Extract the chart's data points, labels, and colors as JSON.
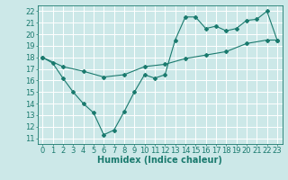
{
  "line1_x": [
    0,
    1,
    2,
    3,
    4,
    5,
    6,
    7,
    8,
    9,
    10,
    11,
    12,
    13,
    14,
    15,
    16,
    17,
    18,
    19,
    20,
    21,
    22,
    23
  ],
  "line1_y": [
    18.0,
    17.5,
    16.2,
    15.0,
    14.0,
    13.2,
    11.3,
    11.7,
    13.3,
    15.0,
    16.5,
    16.2,
    16.5,
    19.5,
    21.5,
    21.5,
    20.5,
    20.7,
    20.3,
    20.5,
    21.2,
    21.3,
    22.0,
    19.5
  ],
  "line2_x": [
    0,
    2,
    4,
    6,
    8,
    10,
    12,
    14,
    16,
    18,
    20,
    22,
    23
  ],
  "line2_y": [
    18.0,
    17.2,
    16.8,
    16.3,
    16.5,
    17.2,
    17.4,
    17.9,
    18.2,
    18.5,
    19.2,
    19.5,
    19.5
  ],
  "line_color": "#1a7a6e",
  "bg_color": "#cce8e8",
  "grid_color": "#ffffff",
  "xlabel": "Humidex (Indice chaleur)",
  "ylim": [
    10.5,
    22.5
  ],
  "xlim": [
    -0.5,
    23.5
  ],
  "yticks": [
    11,
    12,
    13,
    14,
    15,
    16,
    17,
    18,
    19,
    20,
    21,
    22
  ],
  "xticks": [
    0,
    1,
    2,
    3,
    4,
    5,
    6,
    7,
    8,
    9,
    10,
    11,
    12,
    13,
    14,
    15,
    16,
    17,
    18,
    19,
    20,
    21,
    22,
    23
  ],
  "marker": "D",
  "markersize": 2.0,
  "linewidth": 0.8,
  "font_size": 6
}
